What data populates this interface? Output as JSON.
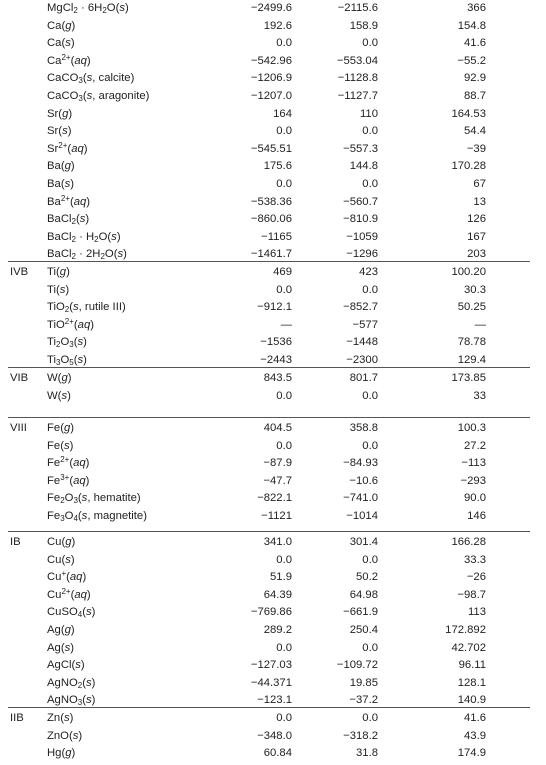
{
  "groups": [
    {
      "label": "",
      "top": 0,
      "rows": [
        {
          "s": "MgCl_{2} · 6H_{2}O(s)",
          "h": "−2499.6",
          "g": "−2115.6",
          "S": "366"
        },
        {
          "s": "Ca(g)",
          "h": "192.6",
          "g": "158.9",
          "S": "154.8"
        },
        {
          "s": "Ca(s)",
          "h": "0.0",
          "g": "0.0",
          "S": "41.6"
        },
        {
          "s": "Ca^{2+}(aq)",
          "h": "−542.96",
          "g": "−553.04",
          "S": "−55.2"
        },
        {
          "s": "CaCO_{3}(s, calcite)",
          "h": "−1206.9",
          "g": "−1128.8",
          "S": "92.9"
        },
        {
          "s": "CaCO_{3}(s, aragonite)",
          "h": "−1207.0",
          "g": "−1127.7",
          "S": "88.7"
        },
        {
          "s": "Sr(g)",
          "h": "164",
          "g": "110",
          "S": "164.53"
        },
        {
          "s": "Sr(s)",
          "h": "0.0",
          "g": "0.0",
          "S": "54.4"
        },
        {
          "s": "Sr^{2+}(aq)",
          "h": "−545.51",
          "g": "−557.3",
          "S": "−39"
        },
        {
          "s": "Ba(g)",
          "h": "175.6",
          "g": "144.8",
          "S": "170.28"
        },
        {
          "s": "Ba(s)",
          "h": "0.0",
          "g": "0.0",
          "S": "67"
        },
        {
          "s": "Ba^{2+}(aq)",
          "h": "−538.36",
          "g": "−560.7",
          "S": "13"
        },
        {
          "s": "BaCl_{2}(s)",
          "h": "−860.06",
          "g": "−810.9",
          "S": "126"
        },
        {
          "s": "BaCl_{2} · H_{2}O(s)",
          "h": "−1165",
          "g": "−1059",
          "S": "167"
        },
        {
          "s": "BaCl_{2} · 2H_{2}O(s)",
          "h": "−1461.7",
          "g": "−1296",
          "S": "203"
        }
      ]
    },
    {
      "label": "IVB",
      "rows": [
        {
          "s": "Ti(g)",
          "h": "469",
          "g": "423",
          "S": "100.20"
        },
        {
          "s": "Ti(s)",
          "h": "0.0",
          "g": "0.0",
          "S": "30.3"
        },
        {
          "s": "TiO_{2}(s, rutile III)",
          "h": "−912.1",
          "g": "−852.7",
          "S": "50.25"
        },
        {
          "s": "TiO^{2+}(aq)",
          "h": "—",
          "g": "−577",
          "S": "—"
        },
        {
          "s": "Ti_{2}O_{3}(s)",
          "h": "−1536",
          "g": "−1448",
          "S": "78.78"
        },
        {
          "s": "Ti_{3}O_{5}(s)",
          "h": "−2443",
          "g": "−2300",
          "S": "129.4"
        }
      ]
    },
    {
      "label": "VIB",
      "rows": [
        {
          "s": "W(g)",
          "h": "843.5",
          "g": "801.7",
          "S": "173.85"
        },
        {
          "s": "W(s)",
          "h": "0.0",
          "g": "0.0",
          "S": "33"
        }
      ]
    },
    {
      "label": "VIII",
      "rows": [
        {
          "s": "Fe(g)",
          "h": "404.5",
          "g": "358.8",
          "S": "100.3"
        },
        {
          "s": "Fe(s)",
          "h": "0.0",
          "g": "0.0",
          "S": "27.2"
        },
        {
          "s": "Fe^{2+}(aq)",
          "h": "−87.9",
          "g": "−84.93",
          "S": "−113"
        },
        {
          "s": "Fe^{3+}(aq)",
          "h": "−47.7",
          "g": "−10.6",
          "S": "−293"
        },
        {
          "s": "Fe_{2}O_{3}(s, hematite)",
          "h": "−822.1",
          "g": "−741.0",
          "S": "90.0"
        },
        {
          "s": "Fe_{3}O_{4}(s, magnetite)",
          "h": "−1121",
          "g": "−1014",
          "S": "146"
        }
      ]
    },
    {
      "label": "IB",
      "rows": [
        {
          "s": "Cu(g)",
          "h": "341.0",
          "g": "301.4",
          "S": "166.28"
        },
        {
          "s": "Cu(s)",
          "h": "0.0",
          "g": "0.0",
          "S": "33.3"
        },
        {
          "s": "Cu^{+}(aq)",
          "h": "51.9",
          "g": "50.2",
          "S": "−26"
        },
        {
          "s": "Cu^{2+}(aq)",
          "h": "64.39",
          "g": "64.98",
          "S": "−98.7"
        },
        {
          "s": "CuSO_{4}(s)",
          "h": "−769.86",
          "g": "−661.9",
          "S": "113"
        },
        {
          "s": "Ag(g)",
          "h": "289.2",
          "g": "250.4",
          "S": "172.892"
        },
        {
          "s": "Ag(s)",
          "h": "0.0",
          "g": "0.0",
          "S": "42.702"
        },
        {
          "s": "AgCl(s)",
          "h": "−127.03",
          "g": "−109.72",
          "S": "96.11"
        },
        {
          "s": "AgNO_{2}(s)",
          "h": "−44.371",
          "g": "19.85",
          "S": "128.1"
        },
        {
          "s": "AgNO_{3}(s)",
          "h": "−123.1",
          "g": "−37.2",
          "S": "140.9"
        }
      ]
    },
    {
      "label": "IIB",
      "rows": [
        {
          "s": "Zn(s)",
          "h": "0.0",
          "g": "0.0",
          "S": "41.6"
        },
        {
          "s": "ZnO(s)",
          "h": "−348.0",
          "g": "−318.2",
          "S": "43.9"
        },
        {
          "s": "Hg(g)",
          "h": "60.84",
          "g": "31.8",
          "S": "174.9"
        }
      ]
    }
  ]
}
